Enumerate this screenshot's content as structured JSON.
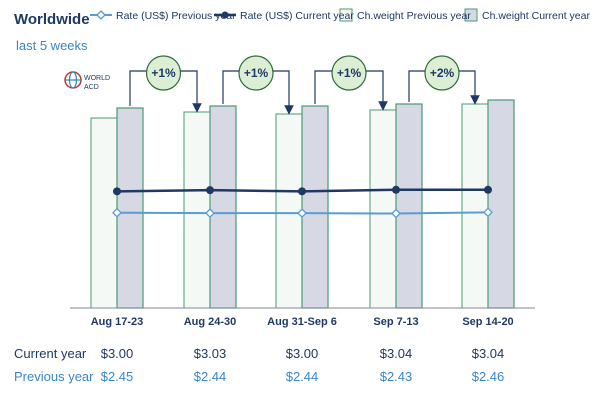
{
  "chart_data": {
    "type": "bar",
    "title": "Worldwide",
    "subtitle": "last 5 weeks",
    "categories": [
      "Aug 17-23",
      "Aug 24-30",
      "Aug 31-Sep 6",
      "Sep 7-13",
      "Sep 14-20"
    ],
    "series": [
      {
        "name": "Ch.weight Previous year",
        "kind": "bar",
        "values": [
          95,
          98,
          97,
          99,
          102
        ]
      },
      {
        "name": "Ch.weight Current year",
        "kind": "bar",
        "values": [
          100,
          101,
          101,
          102,
          104
        ]
      },
      {
        "name": "Rate (US$) Previous year",
        "kind": "line",
        "values": [
          2.45,
          2.44,
          2.44,
          2.43,
          2.46
        ]
      },
      {
        "name": "Rate (US$) Current year",
        "kind": "line",
        "values": [
          3.0,
          3.03,
          3.0,
          3.04,
          3.04
        ]
      }
    ],
    "changes": [
      "+1%",
      "+1%",
      "+1%",
      "+2%"
    ],
    "legend": [
      "Rate (US$) Previous year",
      "Rate (US$) Current year",
      "Ch.weight Previous year",
      "Ch.weight Current year"
    ],
    "legend_position": "top",
    "grid": false,
    "colors": {
      "rate_prev": "#5b9bd5",
      "rate_cur": "#1f3864",
      "bar_prev_fill": "#f5f9f5",
      "bar_prev_stroke": "#4a9a70",
      "bar_cur_fill": "#d6d9e4",
      "bar_cur_stroke": "#4a9a70",
      "badge_fill": "#dcefd5",
      "badge_stroke": "#2e6b3a"
    }
  },
  "table": {
    "current_label": "Current year",
    "previous_label": "Previous year",
    "current_values": [
      "$3.00",
      "$3.03",
      "$3.00",
      "$3.04",
      "$3.04"
    ],
    "previous_values": [
      "$2.45",
      "$2.44",
      "$2.44",
      "$2.43",
      "$2.46"
    ]
  },
  "logo": {
    "line1": "WORLD",
    "line2": "ACD"
  }
}
